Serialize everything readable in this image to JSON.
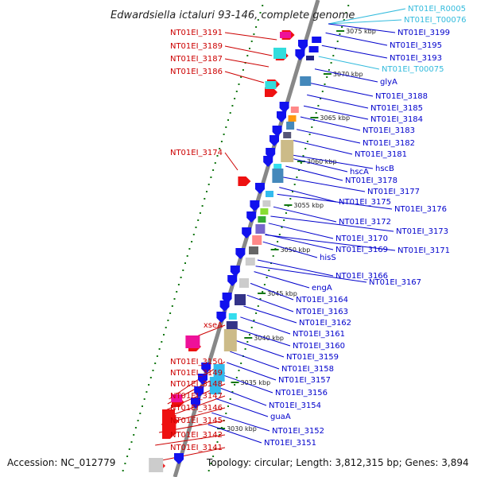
{
  "title": "Edwardsiella ictaluri 93-146, complete genome",
  "accession": "Accession: NC_012779",
  "topology": "Topology: circular; Length: 3,812,315 bp; Genes: 3,894",
  "colors": {
    "left_label": "#cc0000",
    "right_label": "#0000cc",
    "rna_label": "#33bbdd",
    "forward_strand": "#ee1111",
    "reverse_strand": "#1111ee",
    "backbone": "#888888",
    "kbp_tick": "#117711"
  },
  "scale_ticks": [
    "3075 kbp",
    "3070 kbp",
    "3065 kbp",
    "3060 kbp",
    "3055 kbp",
    "3050 kbp",
    "3045 kbp",
    "3040 kbp",
    "3035 kbp",
    "3030 kbp"
  ],
  "left_labels": [
    "NT01EI_3191",
    "NT01EI_3189",
    "NT01EI_3187",
    "NT01EI_3186",
    "NT01EI_3174",
    "xseA",
    "NT01EI_3150",
    "NT01EI_3149",
    "NT01EI_3148",
    "NT01EI_3147",
    "NT01EI_3146",
    "NT01EI_3145",
    "NT01EI_3142",
    "NT01EI_3141"
  ],
  "right_labels": [
    "NT01EI_R0005",
    "NT01EI_T00076",
    "NT01EI_3199",
    "NT01EI_3195",
    "NT01EI_3193",
    "NT01EI_T00075",
    "glyA",
    "NT01EI_3188",
    "NT01EI_3185",
    "NT01EI_3184",
    "NT01EI_3183",
    "NT01EI_3182",
    "NT01EI_3181",
    "hscB",
    "hscA",
    "NT01EI_3178",
    "NT01EI_3177",
    "NT01EI_3175",
    "NT01EI_3176",
    "NT01EI_3172",
    "NT01EI_3173",
    "NT01EI_3170",
    "NT01EI_3169",
    "NT01EI_3171",
    "hisS",
    "NT01EI_3166",
    "NT01EI_3167",
    "engA",
    "NT01EI_3164",
    "NT01EI_3163",
    "NT01EI_3162",
    "NT01EI_3161",
    "NT01EI_3160",
    "NT01EI_3159",
    "NT01EI_3158",
    "NT01EI_3157",
    "NT01EI_3156",
    "NT01EI_3154",
    "guaA",
    "NT01EI_3152",
    "NT01EI_3151"
  ]
}
